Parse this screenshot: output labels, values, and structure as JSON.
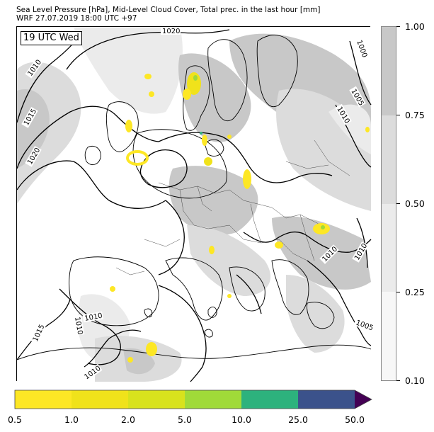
{
  "title": {
    "line1": "Sea Level Pressure [hPa], Mid-Level Cloud Cover, Total prec. in the last hour [mm]",
    "line2": "WRF 27.07.2019 18:00 UTC +97"
  },
  "map": {
    "time_label": "19 UTC Wed",
    "isobar_labels": [
      "1020",
      "1010",
      "1015",
      "1020",
      "1000",
      "1005",
      "1010",
      "1010",
      "1010",
      "1010",
      "1015",
      "1010",
      "1010",
      "1005"
    ]
  },
  "cloud_colorbar": {
    "ticks": [
      "1.00",
      "0.75",
      "0.50",
      "0.25",
      "0.10"
    ],
    "colors": [
      "#c8c8c8",
      "#dcdcdc",
      "#ebebeb",
      "#f7f7f7"
    ]
  },
  "precip_colorbar": {
    "ticks": [
      "0.5",
      "1.0",
      "2.0",
      "5.0",
      "10.0",
      "25.0",
      "50.0"
    ],
    "colors": [
      "#fde725",
      "#f0e21b",
      "#d8e21d",
      "#a0da39",
      "#2db27d",
      "#3b528b",
      "#440154"
    ]
  }
}
